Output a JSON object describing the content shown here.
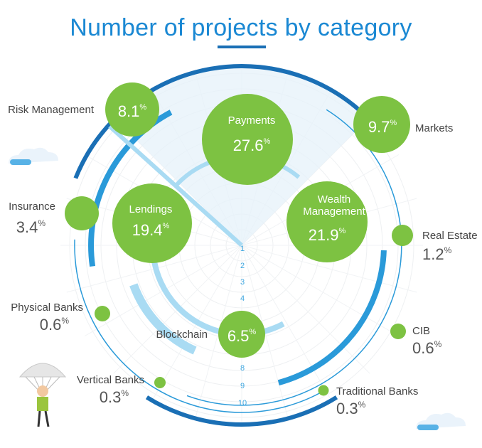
{
  "chart_data": {
    "type": "bubble-radial",
    "title": "Number of projects by category",
    "unit": "%",
    "rings": [
      "1",
      "2",
      "3",
      "4",
      "8",
      "9",
      "10"
    ],
    "categories": [
      {
        "name": "Payments",
        "display": "Payments",
        "value": 27.6
      },
      {
        "name": "Wealth Management",
        "display": "Wealth\nManagement",
        "value": 21.9
      },
      {
        "name": "Lendings",
        "display": "Lendings",
        "value": 19.4
      },
      {
        "name": "Markets",
        "display": "Markets",
        "value": 9.7
      },
      {
        "name": "Risk Management",
        "display": "Risk Management",
        "value": 8.1
      },
      {
        "name": "Blockchain",
        "display": "Blockchain",
        "value": 6.5
      },
      {
        "name": "Insurance",
        "display": "Insurance",
        "value": 3.4
      },
      {
        "name": "Real Estate",
        "display": "Real Estate",
        "value": 1.2
      },
      {
        "name": "Physical Banks",
        "display": "Physical Banks",
        "value": 0.6
      },
      {
        "name": "CIB",
        "display": "CIB",
        "value": 0.6
      },
      {
        "name": "Vertical Banks",
        "display": "Vertical Banks",
        "value": 0.3
      },
      {
        "name": "Traditional Banks",
        "display": "Traditional Banks",
        "value": 0.3
      }
    ],
    "colors": {
      "bubble": "#7dc242",
      "title": "#1a88d3",
      "arc_dark": "#1a6fb5",
      "arc_mid": "#2a9ad9",
      "arc_light": "#a9dbf3",
      "label": "#444444",
      "ring_label": "#3fa7e0"
    }
  }
}
